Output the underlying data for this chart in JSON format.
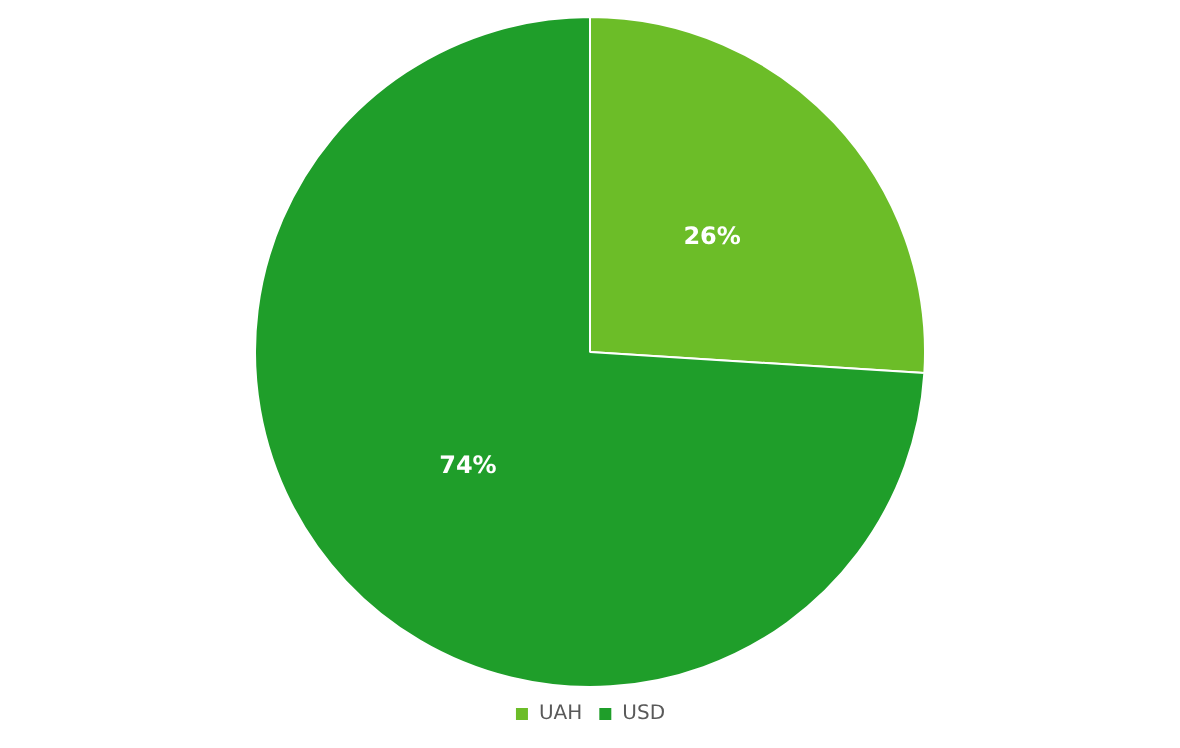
{
  "chart_data": {
    "type": "pie",
    "categories": [
      "UAH",
      "USD"
    ],
    "values": [
      26,
      74
    ],
    "colors": [
      "#6cbd28",
      "#1f9e2a"
    ],
    "value_labels": [
      "26%",
      "74%"
    ],
    "legend": "bottom"
  }
}
